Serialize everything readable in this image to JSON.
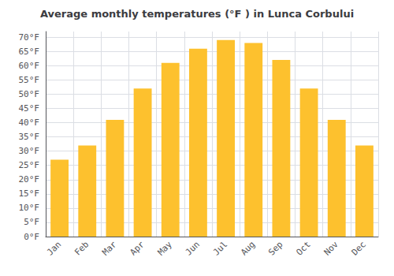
{
  "chart_data": {
    "type": "bar",
    "title": "Average monthly temperatures (°F ) in Lunca Corbului",
    "categories": [
      "Jan",
      "Feb",
      "Mar",
      "Apr",
      "May",
      "Jun",
      "Jul",
      "Aug",
      "Sep",
      "Oct",
      "Nov",
      "Dec"
    ],
    "values": [
      27,
      32,
      41,
      52,
      61,
      66,
      69,
      68,
      62,
      52,
      41,
      32
    ],
    "color": "#FDC12E",
    "ylim": [
      0,
      72
    ],
    "yticks": [
      {
        "value": 0,
        "label": "0°F"
      },
      {
        "value": 5,
        "label": "5°F"
      },
      {
        "value": 10,
        "label": "10°F"
      },
      {
        "value": 15,
        "label": "15°F"
      },
      {
        "value": 20,
        "label": "20°F"
      },
      {
        "value": 25,
        "label": "25°F"
      },
      {
        "value": 30,
        "label": "30°F"
      },
      {
        "value": 35,
        "label": "35°F"
      },
      {
        "value": 40,
        "label": "40°F"
      },
      {
        "value": 45,
        "label": "45°F"
      },
      {
        "value": 50,
        "label": "50°F"
      },
      {
        "value": 55,
        "label": "55°F"
      },
      {
        "value": 60,
        "label": "60°F"
      },
      {
        "value": 65,
        "label": "65°F"
      },
      {
        "value": 70,
        "label": "70°F"
      }
    ],
    "grid": true
  }
}
